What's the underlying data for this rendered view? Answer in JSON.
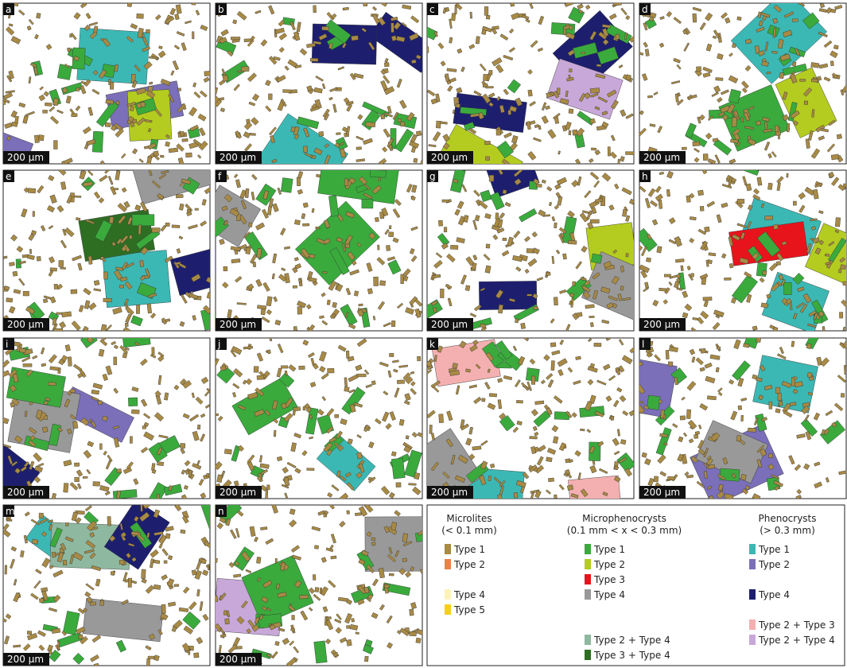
{
  "panels": [
    {
      "label": "a",
      "scale": "200 µm"
    },
    {
      "label": "b",
      "scale": "200 µm"
    },
    {
      "label": "c",
      "scale": "200 µm"
    },
    {
      "label": "d",
      "scale": "200 µm"
    },
    {
      "label": "e",
      "scale": "200 µm"
    },
    {
      "label": "f",
      "scale": "200 µm"
    },
    {
      "label": "g",
      "scale": "200 µm"
    },
    {
      "label": "h",
      "scale": "200 µm"
    },
    {
      "label": "i",
      "scale": "200 µm"
    },
    {
      "label": "j",
      "scale": "200 µm"
    },
    {
      "label": "k",
      "scale": "200 µm"
    },
    {
      "label": "l",
      "scale": "200 µm"
    },
    {
      "label": "m",
      "scale": "200 µm"
    },
    {
      "label": "n",
      "scale": "200 µm"
    }
  ],
  "legend": {
    "groups": [
      {
        "title": "Microlites",
        "subtitle": "(< 0.1 mm)",
        "items": [
          {
            "label": "Type 1",
            "color": "#a88a45"
          },
          {
            "label": "Type 2",
            "color": "#e8824a"
          },
          {
            "label": "Type 4",
            "color": "#fdf3b8"
          },
          {
            "label": "Type 5",
            "color": "#f6cf1c"
          }
        ]
      },
      {
        "title": "Microphenocrysts",
        "subtitle": "(0.1 mm < x < 0.3 mm)",
        "items": [
          {
            "label": "Type 1",
            "color": "#3aaa3c"
          },
          {
            "label": "Type 2",
            "color": "#b4cc1f"
          },
          {
            "label": "Type 3",
            "color": "#e8141c"
          },
          {
            "label": "Type 4",
            "color": "#999999"
          },
          {
            "label": "Type 2 + Type 4",
            "color": "#8fb8a0"
          },
          {
            "label": "Type 3 + Type 4",
            "color": "#2e6e23"
          }
        ]
      },
      {
        "title": "Phenocrysts",
        "subtitle": "(> 0.3 mm)",
        "items": [
          {
            "label": "Type 1",
            "color": "#3cb8b4"
          },
          {
            "label": "Type 2",
            "color": "#7a6fb8"
          },
          {
            "label": "Type 4",
            "color": "#1d1f6e"
          },
          {
            "label": "Type 2 + Type 3",
            "color": "#f4b0b0"
          },
          {
            "label": "Type 2 + Type 4",
            "color": "#c8a8d8"
          }
        ]
      }
    ]
  }
}
